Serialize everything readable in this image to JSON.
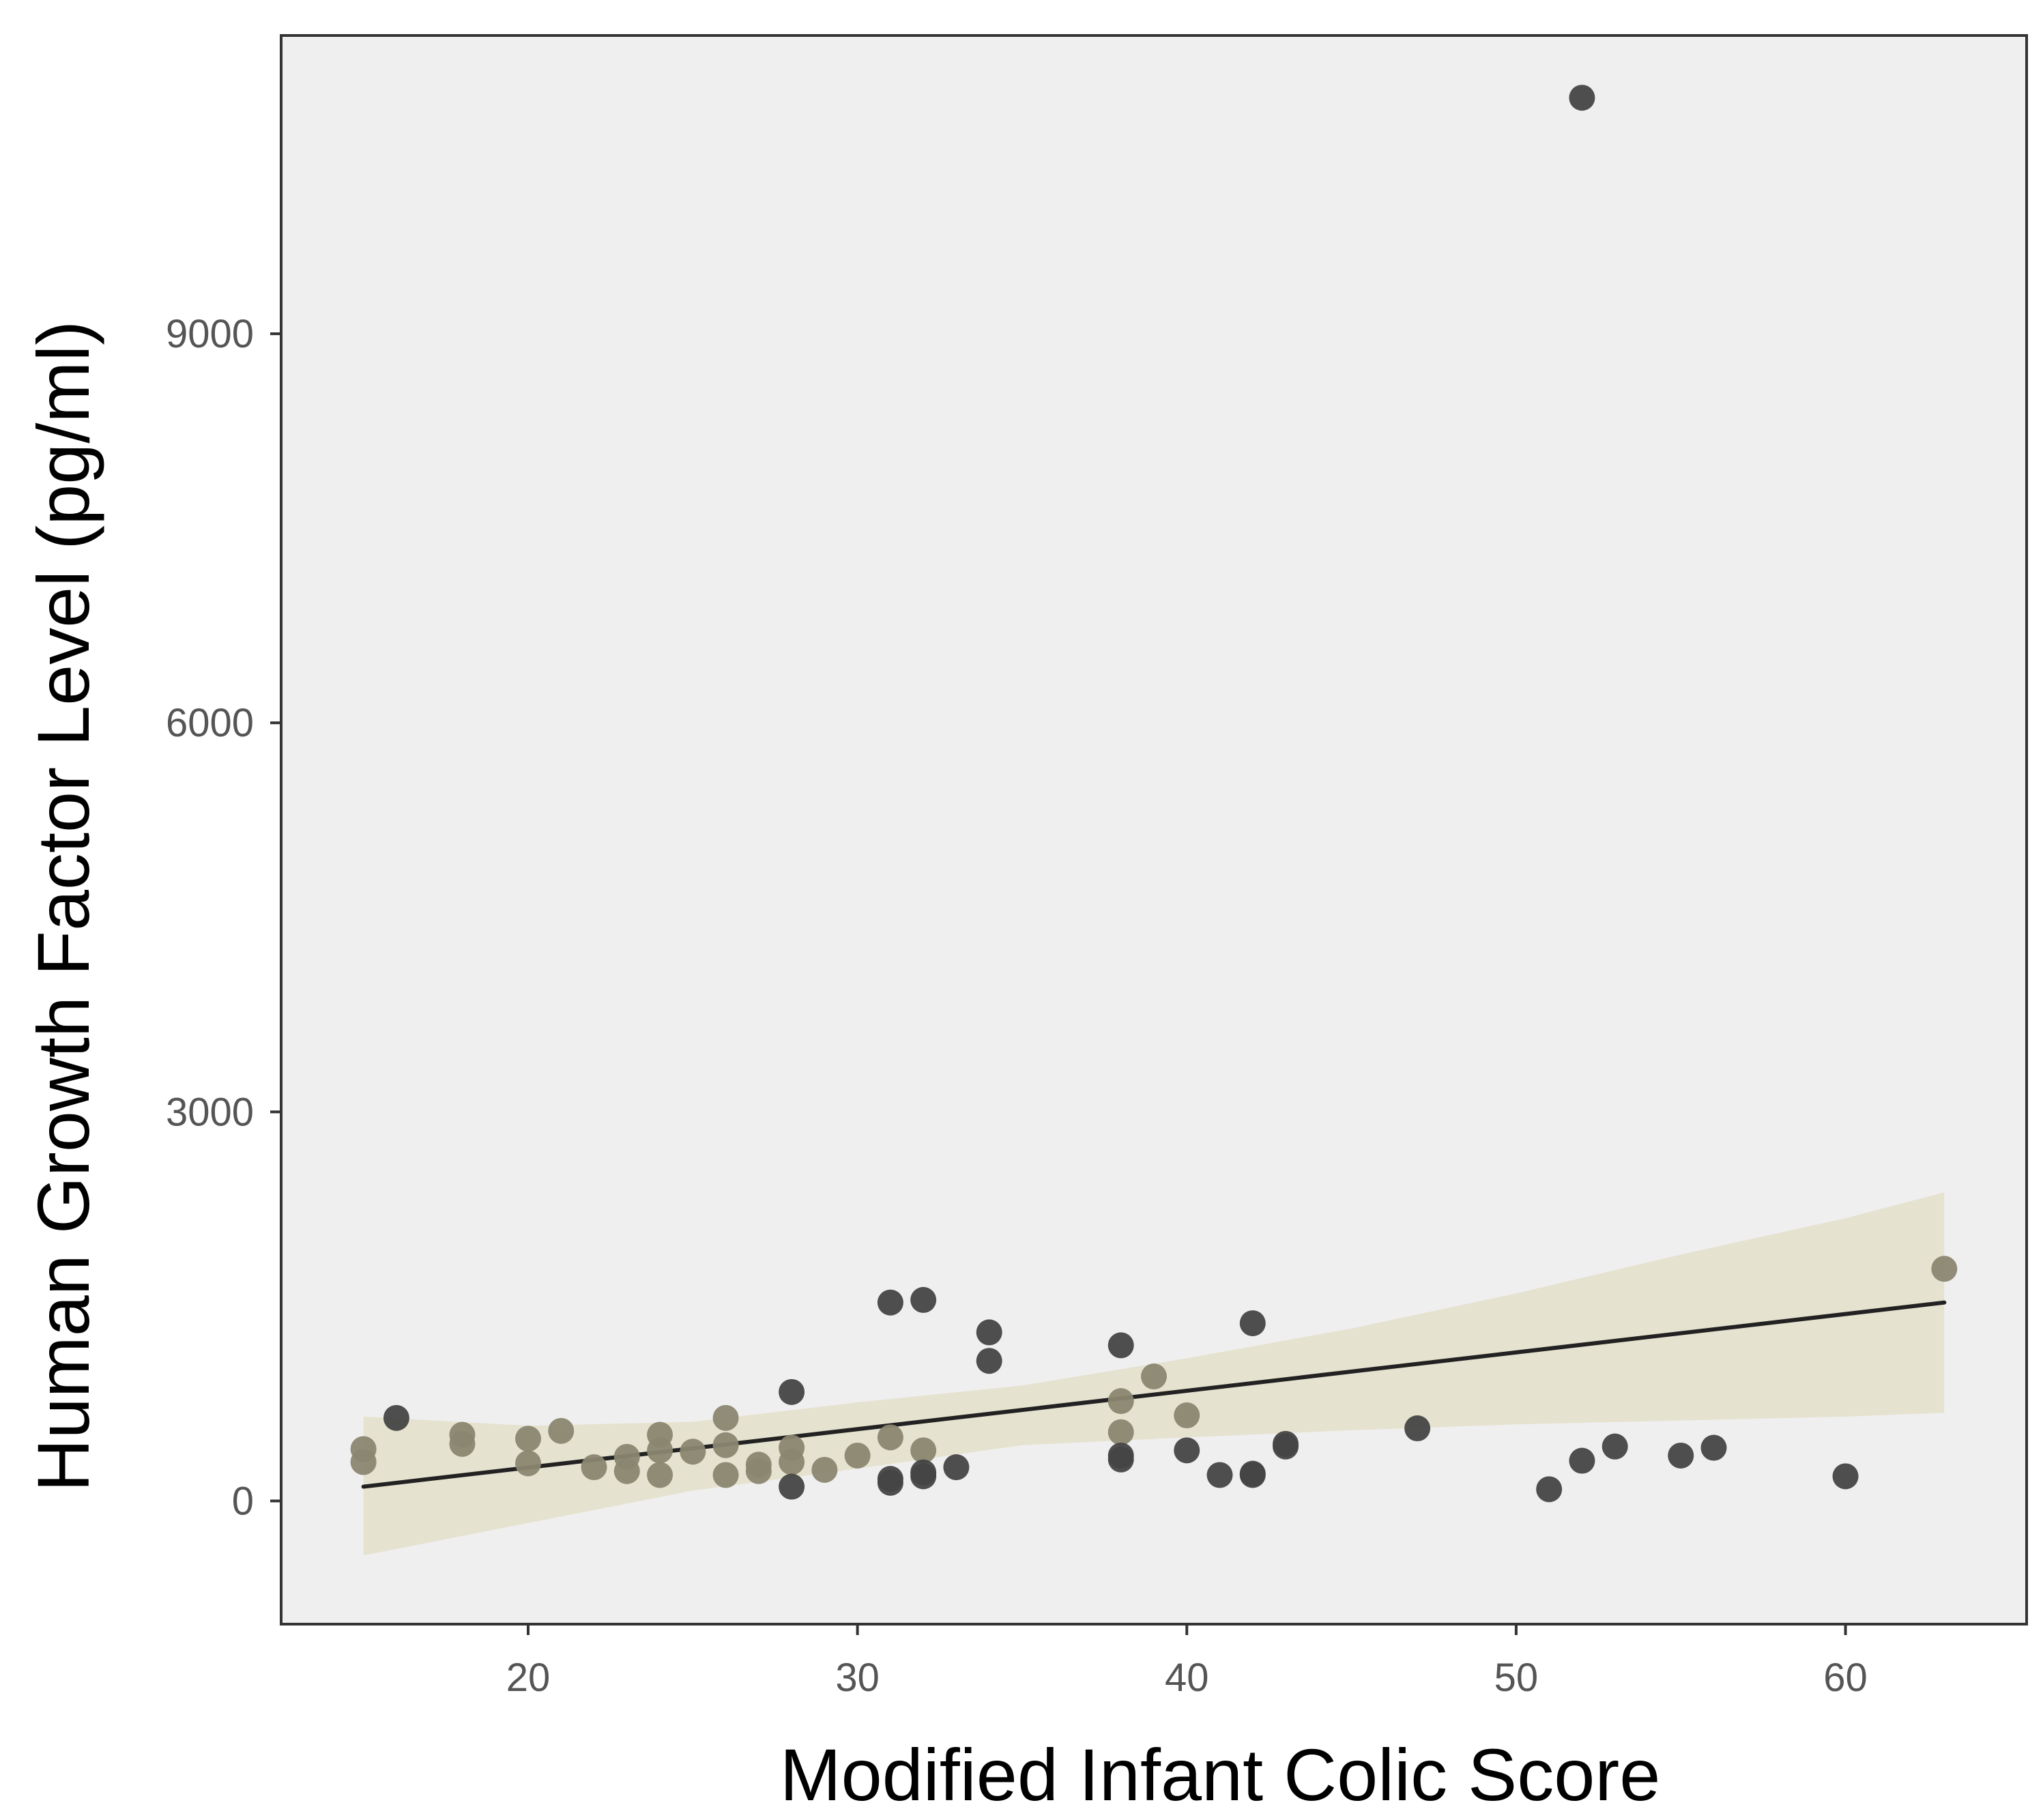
{
  "chart_data": {
    "type": "scatter",
    "title": "",
    "xlabel": "Modified Infant Colic Score",
    "ylabel": "Human Growth Factor Level (pg/ml)",
    "xlim": [
      12.5,
      65.5
    ],
    "ylim": [
      -950,
      11300
    ],
    "xticks": [
      20,
      30,
      40,
      50,
      60
    ],
    "yticks": [
      0,
      3000,
      6000,
      9000
    ],
    "colors": {
      "panel_background": "#efefef",
      "panel_border": "#333333",
      "point_dark": "#444444",
      "point_light": "#8a8670",
      "ribbon": "#e4e0cc",
      "fit_line": "#222222"
    },
    "fit_line": {
      "x": [
        15,
        63
      ],
      "y": [
        110,
        1530
      ]
    },
    "confidence_band": {
      "x": [
        15,
        20,
        25,
        30,
        35,
        40,
        45,
        50,
        55,
        60,
        63
      ],
      "lower": [
        -420,
        -170,
        80,
        250,
        430,
        490,
        545,
        590,
        620,
        650,
        680
      ],
      "upper": [
        650,
        580,
        610,
        760,
        890,
        1100,
        1330,
        1600,
        1900,
        2180,
        2380
      ]
    },
    "series": [
      {
        "name": "points",
        "points": [
          {
            "x": 15,
            "y": 400
          },
          {
            "x": 15,
            "y": 300
          },
          {
            "x": 16,
            "y": 640
          },
          {
            "x": 18,
            "y": 510
          },
          {
            "x": 18,
            "y": 440
          },
          {
            "x": 20,
            "y": 480
          },
          {
            "x": 20,
            "y": 290
          },
          {
            "x": 21,
            "y": 540
          },
          {
            "x": 22,
            "y": 260
          },
          {
            "x": 23,
            "y": 340
          },
          {
            "x": 23,
            "y": 230
          },
          {
            "x": 24,
            "y": 510
          },
          {
            "x": 24,
            "y": 390
          },
          {
            "x": 24,
            "y": 200
          },
          {
            "x": 25,
            "y": 380
          },
          {
            "x": 26,
            "y": 640
          },
          {
            "x": 26,
            "y": 430
          },
          {
            "x": 26,
            "y": 200
          },
          {
            "x": 27,
            "y": 280
          },
          {
            "x": 27,
            "y": 230
          },
          {
            "x": 28,
            "y": 840
          },
          {
            "x": 28,
            "y": 410
          },
          {
            "x": 28,
            "y": 300
          },
          {
            "x": 28,
            "y": 110
          },
          {
            "x": 29,
            "y": 240
          },
          {
            "x": 30,
            "y": 350
          },
          {
            "x": 31,
            "y": 1530
          },
          {
            "x": 31,
            "y": 490
          },
          {
            "x": 31,
            "y": 170
          },
          {
            "x": 31,
            "y": 140
          },
          {
            "x": 32,
            "y": 1550
          },
          {
            "x": 32,
            "y": 390
          },
          {
            "x": 32,
            "y": 220
          },
          {
            "x": 32,
            "y": 190
          },
          {
            "x": 33,
            "y": 260
          },
          {
            "x": 34,
            "y": 1300
          },
          {
            "x": 34,
            "y": 1080
          },
          {
            "x": 38,
            "y": 1200
          },
          {
            "x": 38,
            "y": 770
          },
          {
            "x": 38,
            "y": 530
          },
          {
            "x": 38,
            "y": 350
          },
          {
            "x": 38,
            "y": 320
          },
          {
            "x": 39,
            "y": 960
          },
          {
            "x": 40,
            "y": 660
          },
          {
            "x": 40,
            "y": 390
          },
          {
            "x": 41,
            "y": 200
          },
          {
            "x": 42,
            "y": 1370
          },
          {
            "x": 42,
            "y": 210
          },
          {
            "x": 42,
            "y": 200
          },
          {
            "x": 43,
            "y": 440
          },
          {
            "x": 43,
            "y": 420
          },
          {
            "x": 47,
            "y": 560
          },
          {
            "x": 51,
            "y": 90
          },
          {
            "x": 52,
            "y": 10820
          },
          {
            "x": 52,
            "y": 310
          },
          {
            "x": 53,
            "y": 420
          },
          {
            "x": 55,
            "y": 350
          },
          {
            "x": 56,
            "y": 410
          },
          {
            "x": 60,
            "y": 190
          },
          {
            "x": 63,
            "y": 1790
          }
        ]
      }
    ]
  }
}
